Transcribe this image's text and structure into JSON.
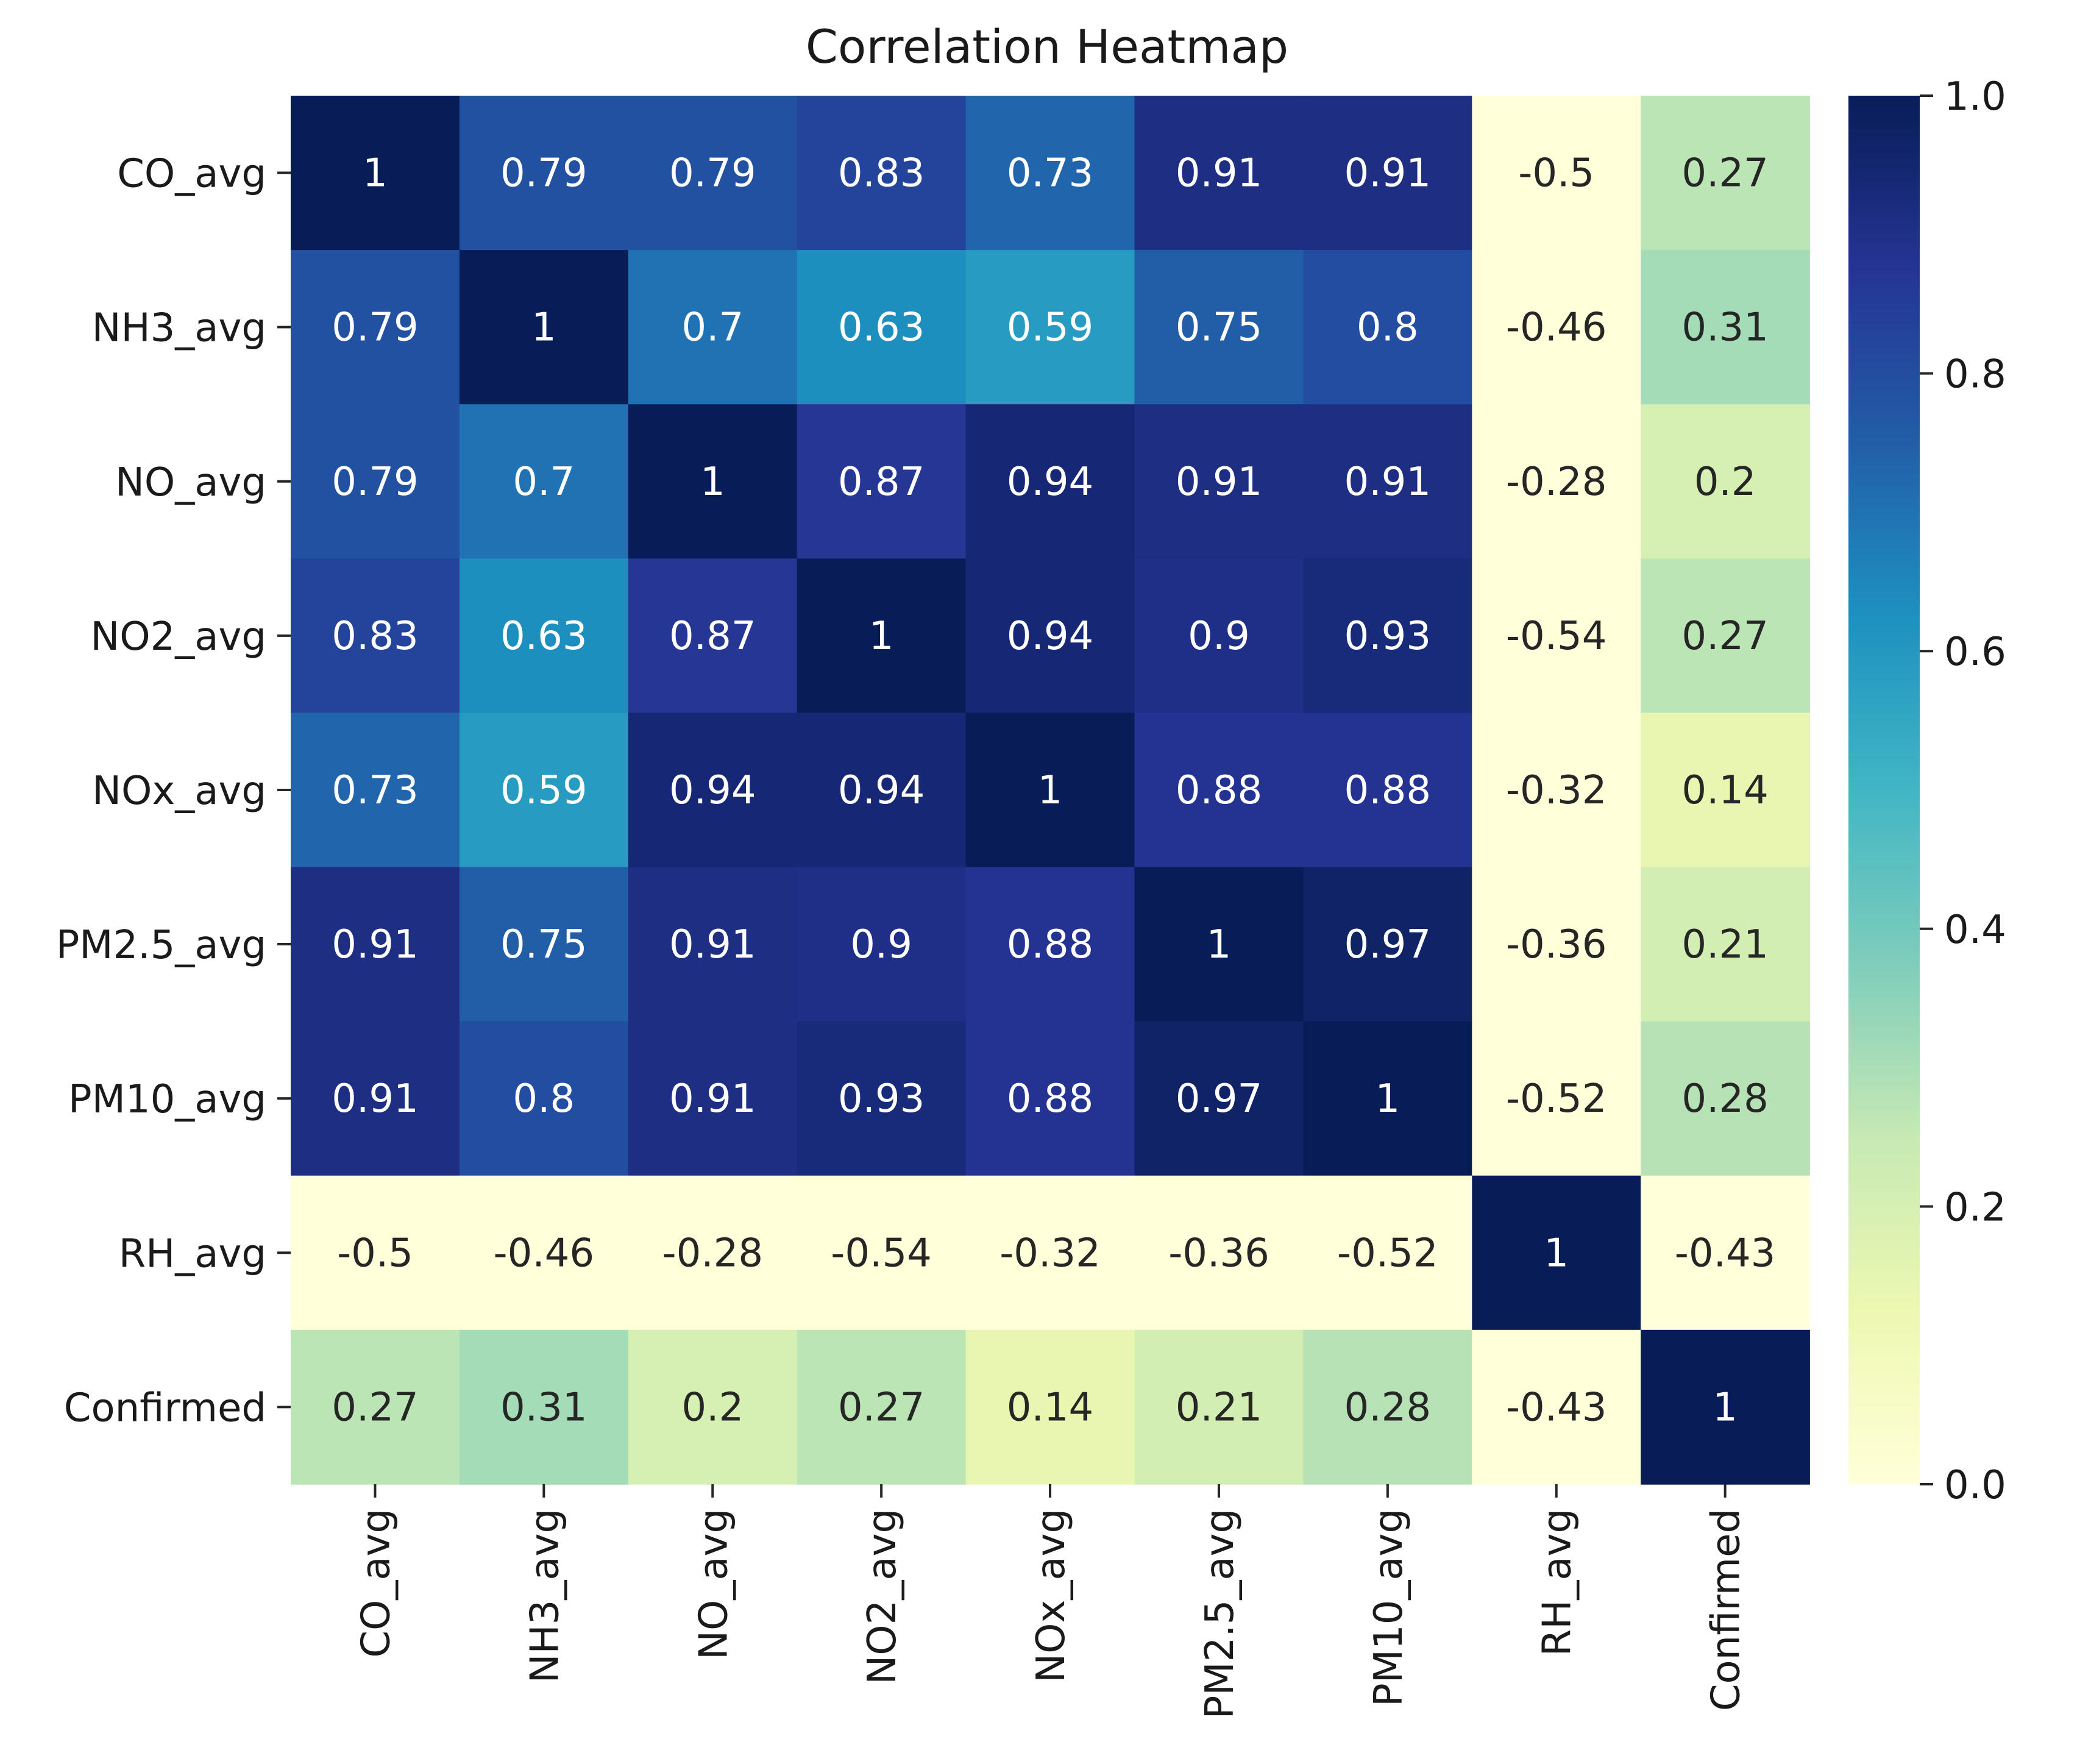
{
  "chart_data": {
    "type": "heatmap",
    "title": "Correlation Heatmap",
    "rows": [
      "CO_avg",
      "NH3_avg",
      "NO_avg",
      "NO2_avg",
      "NOx_avg",
      "PM2.5_avg",
      "PM10_avg",
      "RH_avg",
      "Confirmed"
    ],
    "columns": [
      "CO_avg",
      "NH3_avg",
      "NO_avg",
      "NO2_avg",
      "NOx_avg",
      "PM2.5_avg",
      "PM10_avg",
      "RH_avg",
      "Confirmed"
    ],
    "values": [
      [
        1,
        0.79,
        0.79,
        0.83,
        0.73,
        0.91,
        0.91,
        -0.5,
        0.27
      ],
      [
        0.79,
        1,
        0.7,
        0.63,
        0.59,
        0.75,
        0.8,
        -0.46,
        0.31
      ],
      [
        0.79,
        0.7,
        1,
        0.87,
        0.94,
        0.91,
        0.91,
        -0.28,
        0.2
      ],
      [
        0.83,
        0.63,
        0.87,
        1,
        0.94,
        0.9,
        0.93,
        -0.54,
        0.27
      ],
      [
        0.73,
        0.59,
        0.94,
        0.94,
        1,
        0.88,
        0.88,
        -0.32,
        0.14
      ],
      [
        0.91,
        0.75,
        0.91,
        0.9,
        0.88,
        1,
        0.97,
        -0.36,
        0.21
      ],
      [
        0.91,
        0.8,
        0.91,
        0.93,
        0.88,
        0.97,
        1,
        -0.52,
        0.28
      ],
      [
        -0.5,
        -0.46,
        -0.28,
        -0.54,
        -0.32,
        -0.36,
        -0.52,
        1,
        -0.43
      ],
      [
        0.27,
        0.31,
        0.2,
        0.27,
        0.14,
        0.21,
        0.28,
        -0.43,
        1
      ]
    ],
    "colorbar": {
      "range": [
        0.0,
        1.0
      ],
      "ticks": [
        "0.0",
        "0.2",
        "0.4",
        "0.6",
        "0.8",
        "1.0"
      ],
      "colormap": "YlGnBu",
      "colors": [
        "#ffffd9",
        "#edf8b1",
        "#c7e9b4",
        "#7fcdbb",
        "#41b6c4",
        "#1d91c0",
        "#225ea8",
        "#253494",
        "#081d58"
      ]
    },
    "annotations": true,
    "grid": false,
    "legend": "colorbar-right"
  }
}
